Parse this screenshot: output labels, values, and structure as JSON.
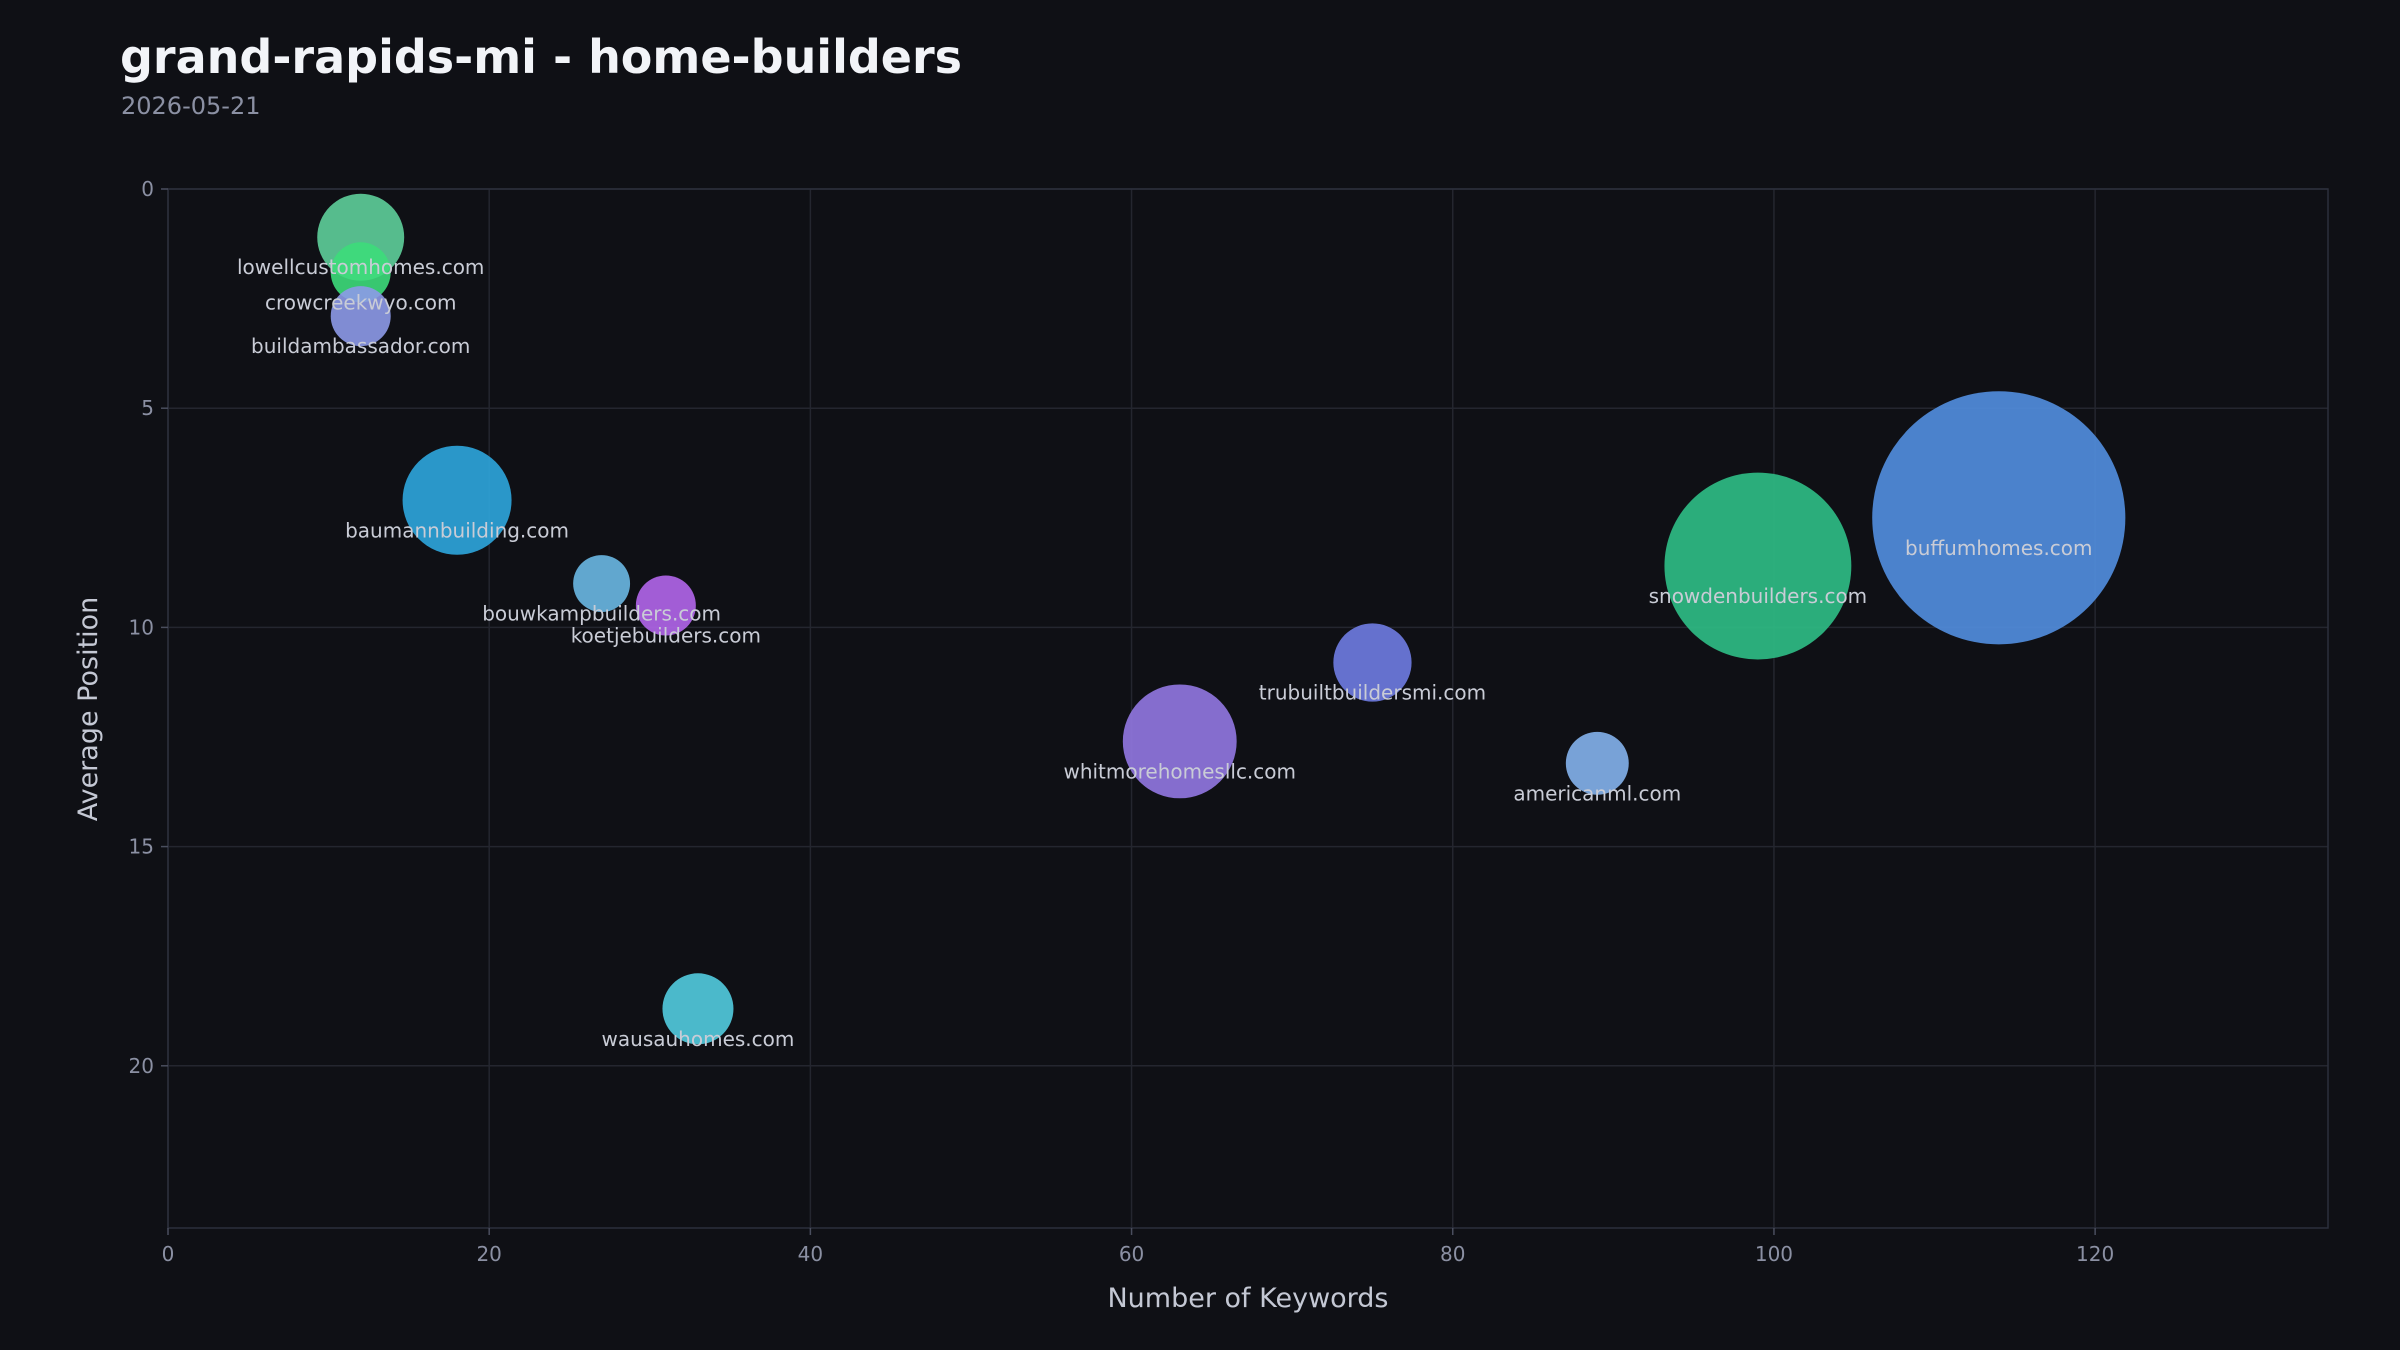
{
  "chart_data": {
    "type": "scatter",
    "title": "grand-rapids-mi - home-builders",
    "subtitle": "2026-05-21",
    "xlabel": "Number of Keywords",
    "ylabel": "Average Position",
    "xlim": [
      0,
      134.5
    ],
    "ylim": [
      0,
      23.7
    ],
    "y_inverted": true,
    "xticks": [
      0,
      20,
      40,
      60,
      80,
      100,
      120
    ],
    "yticks": [
      0,
      5,
      10,
      15,
      20
    ],
    "grid": true,
    "legend": "none",
    "points": [
      {
        "label": "lowellcustomhomes.com",
        "x": 12,
        "y": 1.1,
        "size": 2.1,
        "color": "#5ecf9a"
      },
      {
        "label": "crowcreekwyo.com",
        "x": 12,
        "y": 1.9,
        "size": 1.0,
        "color": "#3ddc7a"
      },
      {
        "label": "buildambassador.com",
        "x": 12,
        "y": 2.9,
        "size": 1.0,
        "color": "#8d9ae8"
      },
      {
        "label": "baumannbuilding.com",
        "x": 18,
        "y": 7.1,
        "size": 3.3,
        "color": "#2ea6dd"
      },
      {
        "label": "bouwkampbuilders.com",
        "x": 27,
        "y": 9.0,
        "size": 0.9,
        "color": "#6ab8e3"
      },
      {
        "label": "koetjebuilders.com",
        "x": 31,
        "y": 9.5,
        "size": 1.0,
        "color": "#b366eb"
      },
      {
        "label": "wausauhomes.com",
        "x": 33,
        "y": 18.7,
        "size": 1.4,
        "color": "#52ccdf"
      },
      {
        "label": "whitmorehomesllc.com",
        "x": 63,
        "y": 12.6,
        "size": 3.6,
        "color": "#9278e2"
      },
      {
        "label": "trubuiltbuildersmi.com",
        "x": 75,
        "y": 10.8,
        "size": 1.7,
        "color": "#6f7ce2"
      },
      {
        "label": "americanml.com",
        "x": 89,
        "y": 13.1,
        "size": 1.1,
        "color": "#84b2ec"
      },
      {
        "label": "snowdenbuilders.com",
        "x": 99,
        "y": 8.6,
        "size": 9.7,
        "color": "#2fbf86"
      },
      {
        "label": "buffumhomes.com",
        "x": 114,
        "y": 7.5,
        "size": 17.8,
        "color": "#528fe0"
      }
    ]
  }
}
